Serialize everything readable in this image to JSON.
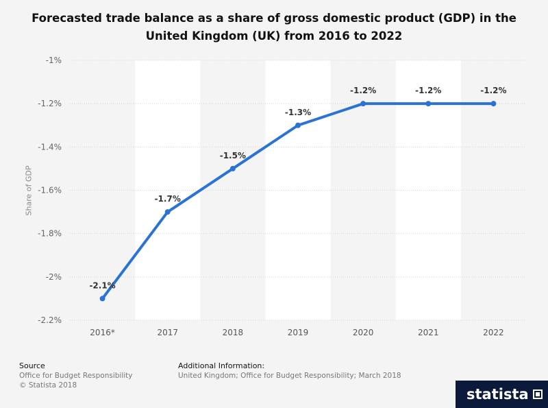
{
  "title": "Forecasted trade balance as a share of gross domestic product (GDP) in the United Kingdom (UK) from 2016 to 2022",
  "colors": {
    "line": "#2a73d5",
    "band": "#ffffff",
    "grid": "#d4d4d4"
  },
  "footer": {
    "source_heading": "Source",
    "source_line1": "Office for Budget Responsibility",
    "source_line2": "© Statista 2018",
    "info_heading": "Additional Information:",
    "info_line1": "United Kingdom; Office for Budget Responsibility; March 2018"
  },
  "brand": "statista",
  "chart_data": {
    "type": "line",
    "title": "Forecasted trade balance as a share of gross domestic product (GDP) in the United Kingdom (UK) from 2016 to 2022",
    "xlabel": "",
    "ylabel": "Share of GDP",
    "categories": [
      "2016*",
      "2017",
      "2018",
      "2019",
      "2020",
      "2021",
      "2022"
    ],
    "series": [
      {
        "values": [
          -2.1,
          -1.7,
          -1.5,
          -1.3,
          -1.2,
          -1.2,
          -1.2
        ],
        "labels": [
          "-2.1%",
          "-1.7%",
          "-1.5%",
          "-1.3%",
          "-1.2%",
          "-1.2%",
          "-1.2%"
        ]
      }
    ],
    "ylim": [
      -2.2,
      -1.0
    ],
    "yticks": [
      -1.0,
      -1.2,
      -1.4,
      -1.6,
      -1.8,
      -2.0,
      -2.2
    ],
    "ytick_labels": [
      "-1%",
      "-1.2%",
      "-1.4%",
      "-1.6%",
      "-1.8%",
      "-2%",
      "-2.2%"
    ],
    "grid": true
  }
}
